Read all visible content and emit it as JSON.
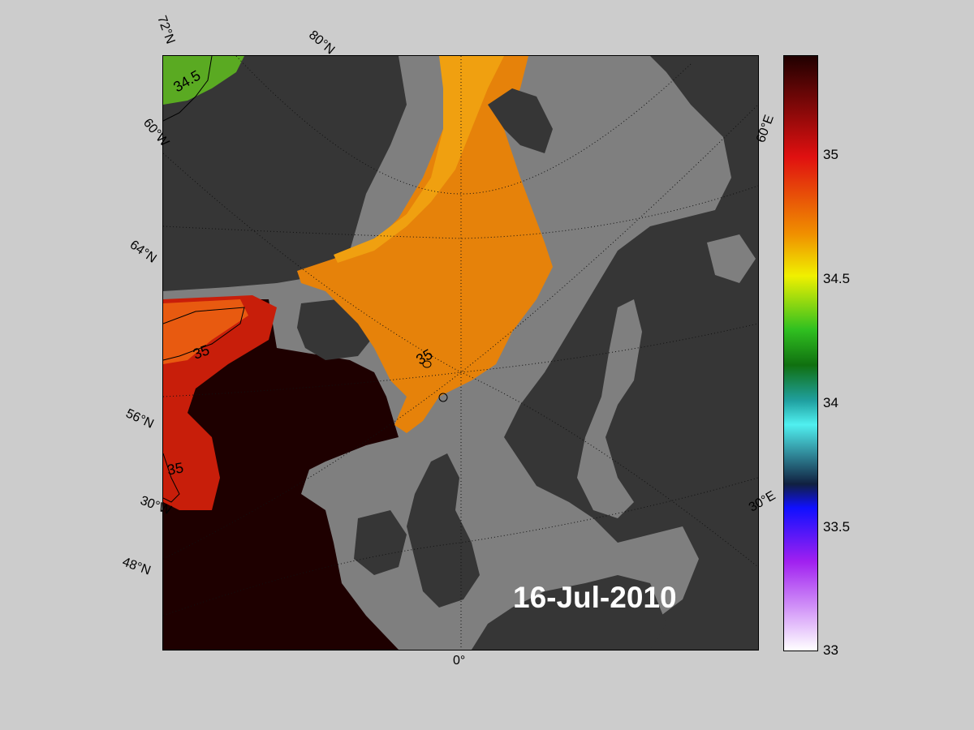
{
  "map": {
    "date": "16-Jul-2010",
    "lat_labels": [
      "72°N",
      "80°N",
      "64°N",
      "56°N",
      "48°N"
    ],
    "lon_labels": [
      "60°W",
      "30°W",
      "0°",
      "30°E",
      "60°E"
    ],
    "contour_labels": [
      "34.5",
      "35",
      "35",
      "35"
    ]
  },
  "colorbar": {
    "min": 33,
    "max": 35.4,
    "ticks": [
      "33",
      "33.5",
      "34",
      "34.5",
      "35"
    ],
    "colors": {
      "low": "#ffffff",
      "violet": "#a020f0",
      "blue": "#1010ff",
      "navy": "#102040",
      "cyan": "#50f0f0",
      "teal": "#20a0a0",
      "green_dark": "#107010",
      "green": "#30c020",
      "yellow": "#f0f000",
      "orange": "#f09000",
      "red": "#e01010",
      "dark_red": "#200000"
    }
  },
  "colors": {
    "land": "#363636",
    "ocean_nodata": "#7f7f7f",
    "high_salinity": "#1e0000",
    "atlantic_water": "#e6820a",
    "polar_water": "#5aaa22"
  }
}
